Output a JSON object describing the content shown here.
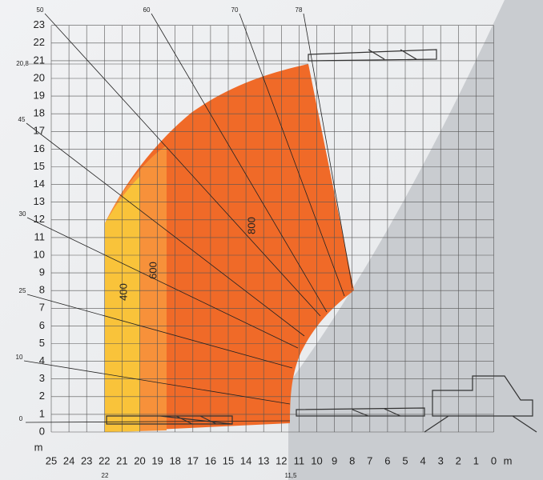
{
  "y_axis": {
    "ticks": [
      "0",
      "1",
      "2",
      "3",
      "4",
      "5",
      "6",
      "7",
      "8",
      "9",
      "10",
      "11",
      "12",
      "13",
      "14",
      "15",
      "16",
      "17",
      "18",
      "19",
      "20",
      "21",
      "22",
      "23"
    ],
    "unit": "m",
    "extra": "20,8"
  },
  "x_axis": {
    "ticks": [
      "25",
      "24",
      "23",
      "22",
      "21",
      "20",
      "19",
      "18",
      "17",
      "16",
      "15",
      "14",
      "13",
      "12",
      "11",
      "10",
      "9",
      "8",
      "7",
      "6",
      "5",
      "4",
      "3",
      "2",
      "1",
      "0"
    ],
    "unit": "m",
    "extra": [
      "22",
      "11,5"
    ]
  },
  "zones": [
    "400",
    "600",
    "800"
  ],
  "angles": [
    "0",
    "10",
    "25",
    "30",
    "45",
    "50",
    "60",
    "70",
    "78"
  ]
}
